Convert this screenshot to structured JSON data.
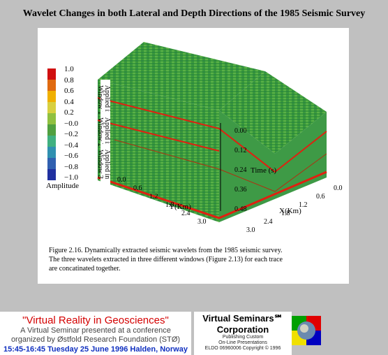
{
  "title": "Wavelet Changes in both Lateral and Depth Directions of the 1985 Seismic Survey",
  "colorbar": {
    "ticks": [
      "1.0",
      "0.8",
      "0.6",
      "0.4",
      "0.2",
      "−0.0",
      "−0.2",
      "−0.4",
      "−0.6",
      "−0.8",
      "−1.0"
    ],
    "label": "Amplitude",
    "colors": [
      "#d01010",
      "#e06a10",
      "#f0b000",
      "#d8d040",
      "#90c040",
      "#50a040",
      "#40b080",
      "#3090b0",
      "#3060b0",
      "#2030a0"
    ]
  },
  "windows": [
    "Applied in Window 1",
    "Applied in Window 2",
    "Applied in Window 3"
  ],
  "axes": {
    "y_label": "Y(Km)",
    "x_label": "X(Km)",
    "time_label": "Time (s)",
    "y_ticks": [
      "0.0",
      "0.6",
      "1.2",
      "1.8",
      "2.4",
      "3.0"
    ],
    "x_ticks": [
      "0.0",
      "0.6",
      "1.2",
      "1.8",
      "2.4",
      "3.0"
    ],
    "time_ticks": [
      "0.00",
      "0.12",
      "0.24",
      "0.36",
      "0.48"
    ]
  },
  "caption": [
    "Figure 2.16. Dynamically extracted seismic wavelets from the 1985 seismic survey.",
    "The three wavelets extracted in three different windows (Figure 2.13) for each trace",
    "are concatinated together."
  ],
  "banner": {
    "title": "\"Virtual Reality in Geosciences\"",
    "line1": "A Virtual Seminar presented at a conference",
    "line2": "organized by Østfold Research Foundation (STØ)",
    "date": "15:45-16:45 Tuesday 25 June 1996 Halden, Norway",
    "vs_title1": "Virtual Seminars℠",
    "vs_title2": "Corporation",
    "vs_line1": "Publishing Custom",
    "vs_line2": "On-Line Presentations",
    "vs_line3": "ELDO 06960006 Copyright © 1996"
  }
}
